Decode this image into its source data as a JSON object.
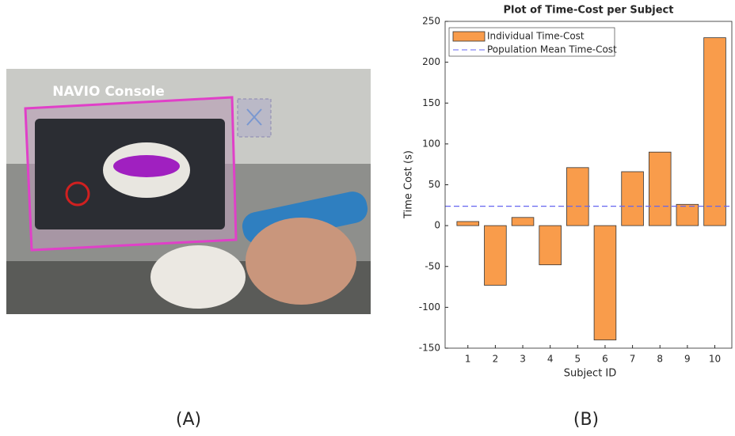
{
  "panels": {
    "photo_label": "NAVIO Console",
    "label_a": "(A)",
    "label_b": "(B)"
  },
  "chart_data": {
    "type": "bar",
    "title": "Plot of Time-Cost per Subject",
    "xlabel": "Subject ID",
    "ylabel": "Time Cost (s)",
    "categories": [
      "1",
      "2",
      "3",
      "4",
      "5",
      "6",
      "7",
      "8",
      "9",
      "10"
    ],
    "series": [
      {
        "name": "Individual Time-Cost",
        "color": "#f99c4b",
        "values": [
          5,
          -73,
          10,
          -48,
          71,
          -140,
          66,
          90,
          26,
          230
        ]
      }
    ],
    "mean_line": {
      "name": "Population Mean Time-Cost",
      "value": 23.7,
      "color": "#6464f0",
      "style": "dashed"
    },
    "ylim": [
      -150,
      250
    ],
    "yticks": [
      -150,
      -100,
      -50,
      0,
      50,
      100,
      150,
      200,
      250
    ],
    "grid": false,
    "legend": "upper left"
  }
}
